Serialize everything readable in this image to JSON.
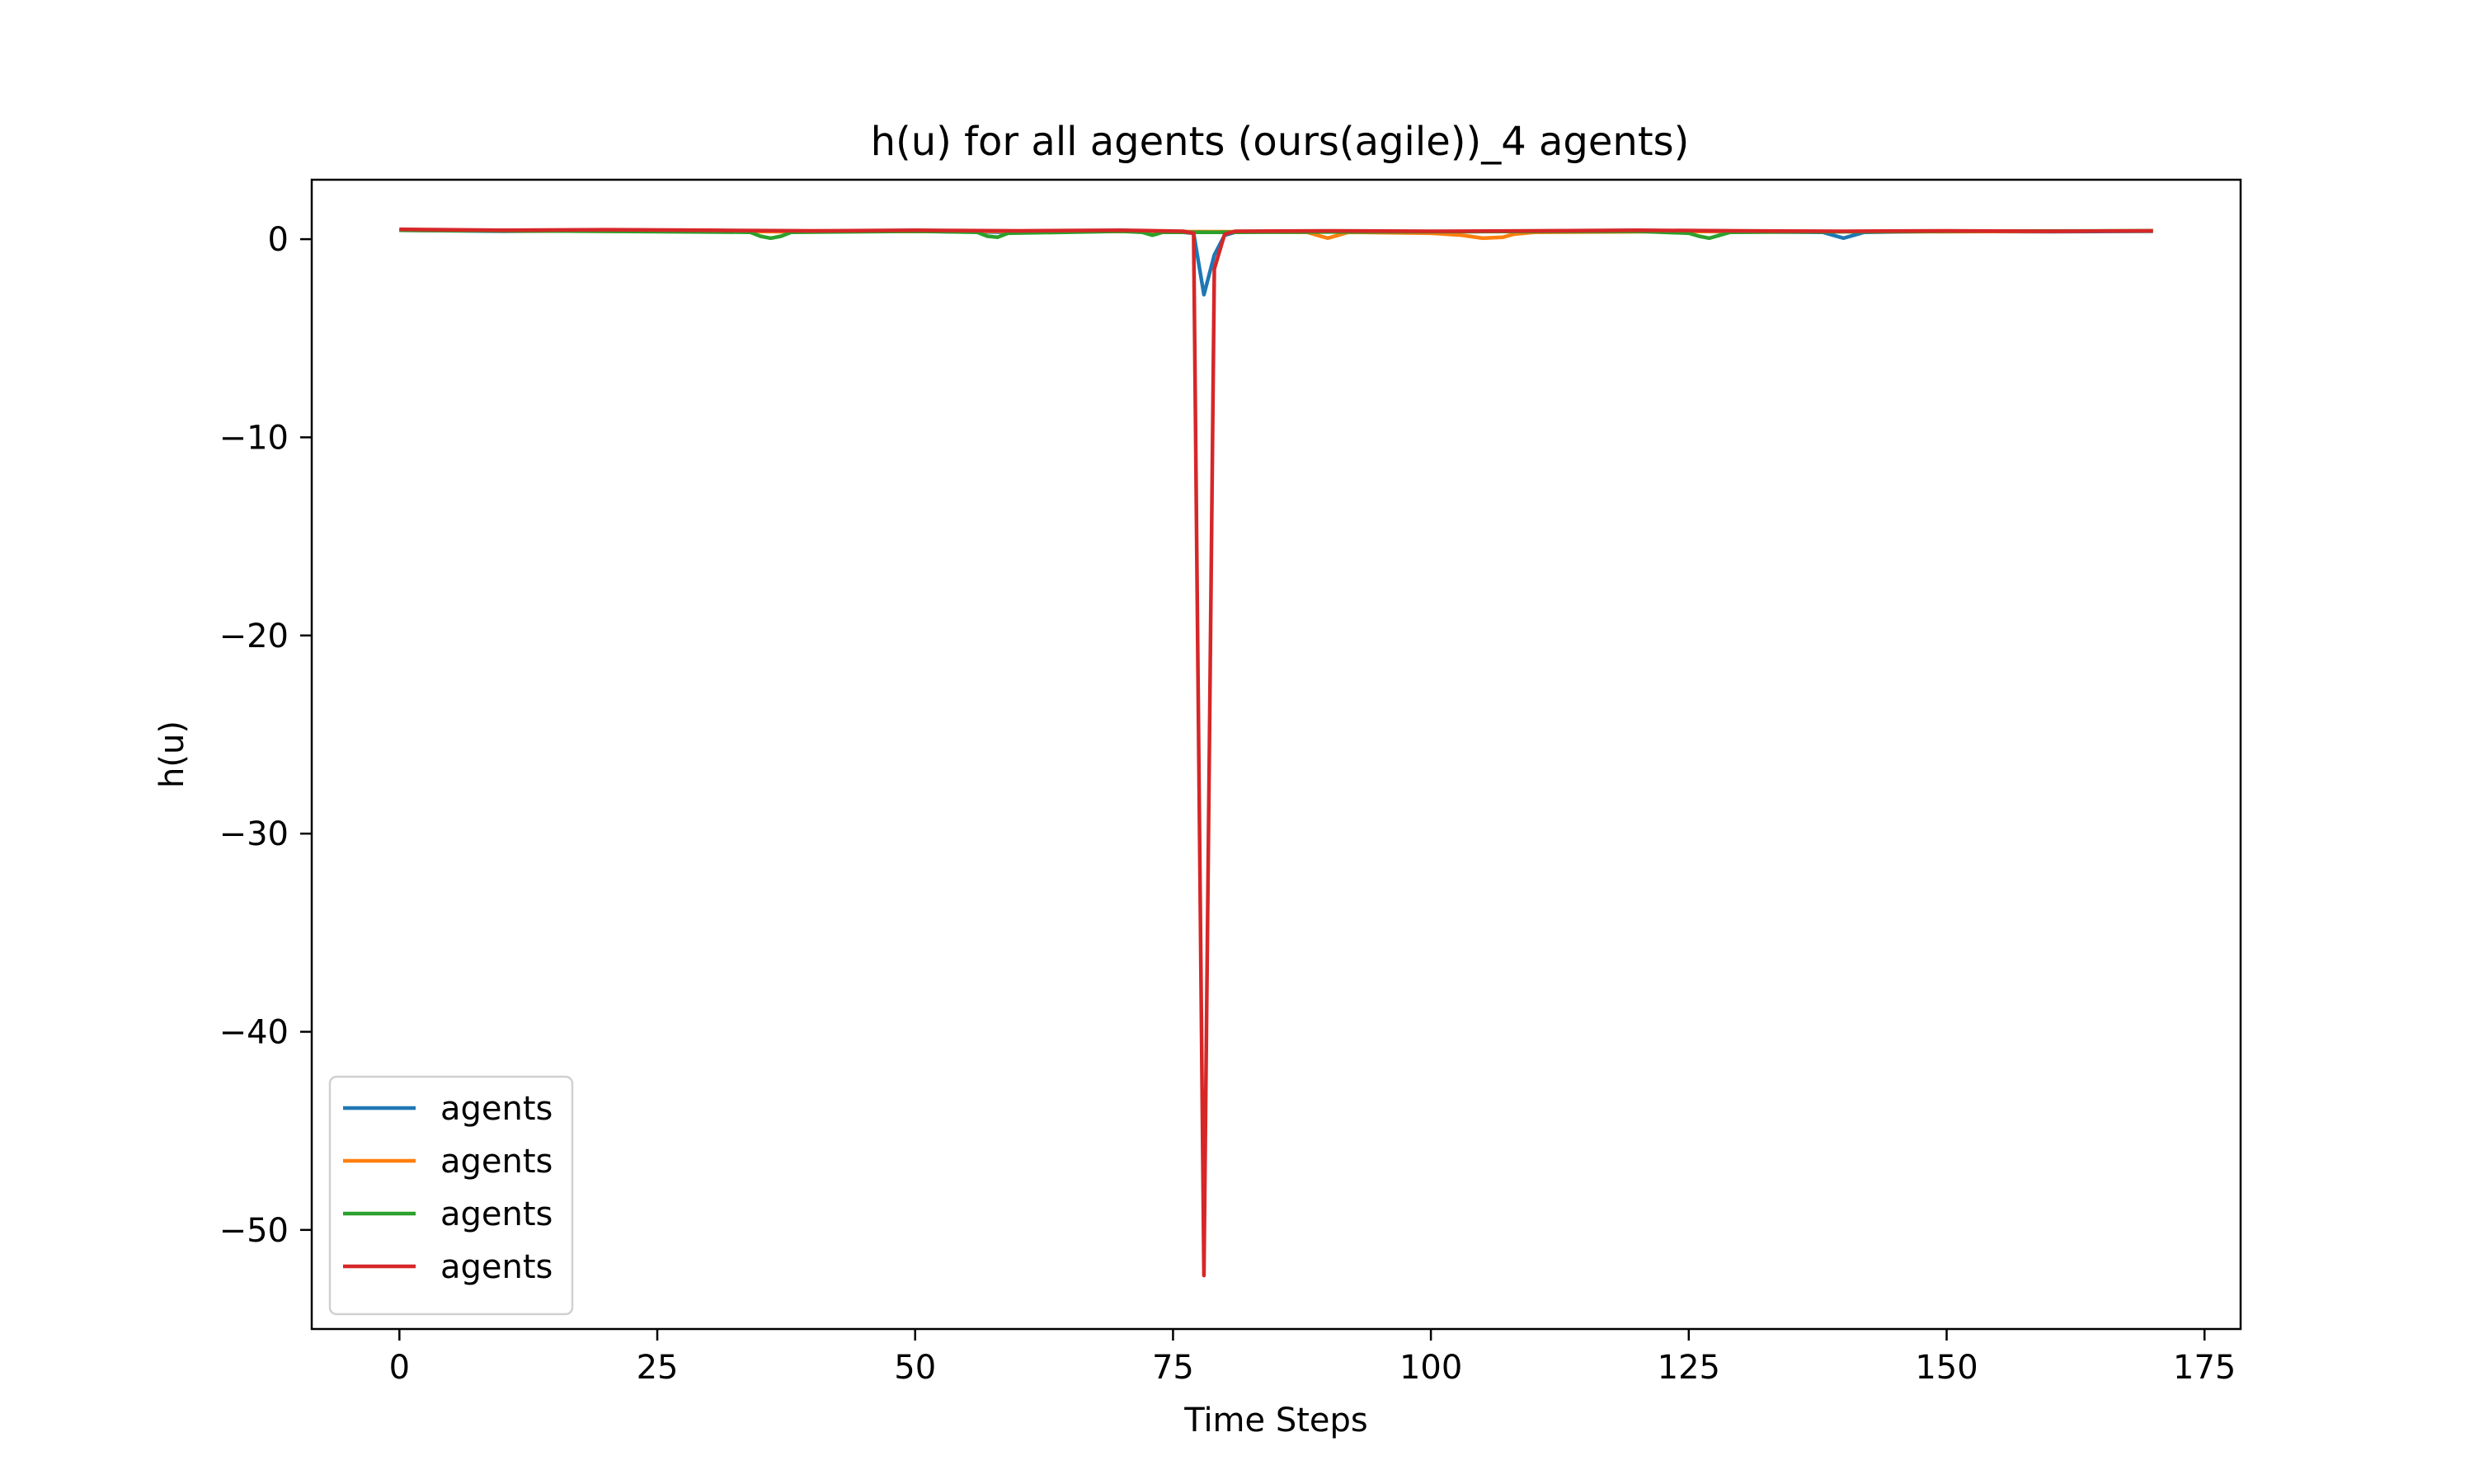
{
  "chart_data": {
    "type": "line",
    "title": "h(u) for all agents (ours(agile))_4 agents)",
    "xlabel": "Time Steps",
    "ylabel": "h(u)",
    "xlim": [
      -8.5,
      178.5
    ],
    "ylim": [
      -55.0,
      3.0
    ],
    "xticks": [
      0,
      25,
      50,
      75,
      100,
      125,
      150,
      175
    ],
    "yticks": [
      0,
      -10,
      -20,
      -30,
      -40,
      -50
    ],
    "xtick_labels": [
      "0",
      "25",
      "50",
      "75",
      "100",
      "125",
      "150",
      "175"
    ],
    "ytick_labels": [
      "0",
      "−10",
      "−20",
      "−30",
      "−40",
      "−50"
    ],
    "grid": false,
    "legend_position": "lower-left",
    "series": [
      {
        "name": "agents",
        "color": "#1f77b4",
        "points": [
          [
            0,
            0.45
          ],
          [
            10,
            0.4
          ],
          [
            20,
            0.42
          ],
          [
            30,
            0.4
          ],
          [
            40,
            0.38
          ],
          [
            50,
            0.4
          ],
          [
            60,
            0.35
          ],
          [
            70,
            0.4
          ],
          [
            76,
            0.35
          ],
          [
            77,
            0.3
          ],
          [
            78,
            -2.8
          ],
          [
            79,
            -0.8
          ],
          [
            80,
            0.2
          ],
          [
            81,
            0.35
          ],
          [
            90,
            0.4
          ],
          [
            100,
            0.38
          ],
          [
            110,
            0.4
          ],
          [
            120,
            0.4
          ],
          [
            130,
            0.38
          ],
          [
            138,
            0.35
          ],
          [
            139,
            0.2
          ],
          [
            140,
            0.05
          ],
          [
            141,
            0.2
          ],
          [
            142,
            0.35
          ],
          [
            150,
            0.4
          ],
          [
            160,
            0.38
          ],
          [
            170,
            0.4
          ]
        ]
      },
      {
        "name": "agents",
        "color": "#ff7f0e",
        "points": [
          [
            0,
            0.45
          ],
          [
            20,
            0.4
          ],
          [
            40,
            0.38
          ],
          [
            60,
            0.4
          ],
          [
            80,
            0.38
          ],
          [
            88,
            0.35
          ],
          [
            89,
            0.2
          ],
          [
            90,
            0.05
          ],
          [
            91,
            0.2
          ],
          [
            92,
            0.35
          ],
          [
            100,
            0.3
          ],
          [
            103,
            0.2
          ],
          [
            105,
            0.05
          ],
          [
            107,
            0.1
          ],
          [
            108,
            0.25
          ],
          [
            110,
            0.35
          ],
          [
            130,
            0.4
          ],
          [
            150,
            0.38
          ],
          [
            170,
            0.42
          ]
        ]
      },
      {
        "name": "agents",
        "color": "#2ca02c",
        "points": [
          [
            0,
            0.45
          ],
          [
            20,
            0.4
          ],
          [
            34,
            0.35
          ],
          [
            35,
            0.15
          ],
          [
            36,
            0.05
          ],
          [
            37,
            0.15
          ],
          [
            38,
            0.35
          ],
          [
            50,
            0.4
          ],
          [
            56,
            0.35
          ],
          [
            57,
            0.15
          ],
          [
            58,
            0.1
          ],
          [
            59,
            0.3
          ],
          [
            70,
            0.4
          ],
          [
            72,
            0.35
          ],
          [
            73,
            0.2
          ],
          [
            74,
            0.35
          ],
          [
            78,
            0.35
          ],
          [
            80,
            0.35
          ],
          [
            100,
            0.38
          ],
          [
            120,
            0.4
          ],
          [
            125,
            0.3
          ],
          [
            126,
            0.15
          ],
          [
            127,
            0.05
          ],
          [
            128,
            0.2
          ],
          [
            129,
            0.35
          ],
          [
            150,
            0.4
          ],
          [
            170,
            0.42
          ]
        ]
      },
      {
        "name": "agents",
        "color": "#d62728",
        "points": [
          [
            0,
            0.5
          ],
          [
            10,
            0.45
          ],
          [
            20,
            0.48
          ],
          [
            30,
            0.45
          ],
          [
            40,
            0.42
          ],
          [
            50,
            0.45
          ],
          [
            60,
            0.42
          ],
          [
            70,
            0.45
          ],
          [
            76,
            0.4
          ],
          [
            77,
            0.3
          ],
          [
            78,
            -52.3
          ],
          [
            79,
            -1.5
          ],
          [
            80,
            0.25
          ],
          [
            81,
            0.4
          ],
          [
            90,
            0.42
          ],
          [
            100,
            0.4
          ],
          [
            110,
            0.42
          ],
          [
            120,
            0.45
          ],
          [
            130,
            0.42
          ],
          [
            140,
            0.4
          ],
          [
            150,
            0.42
          ],
          [
            160,
            0.4
          ],
          [
            170,
            0.42
          ]
        ]
      }
    ]
  }
}
